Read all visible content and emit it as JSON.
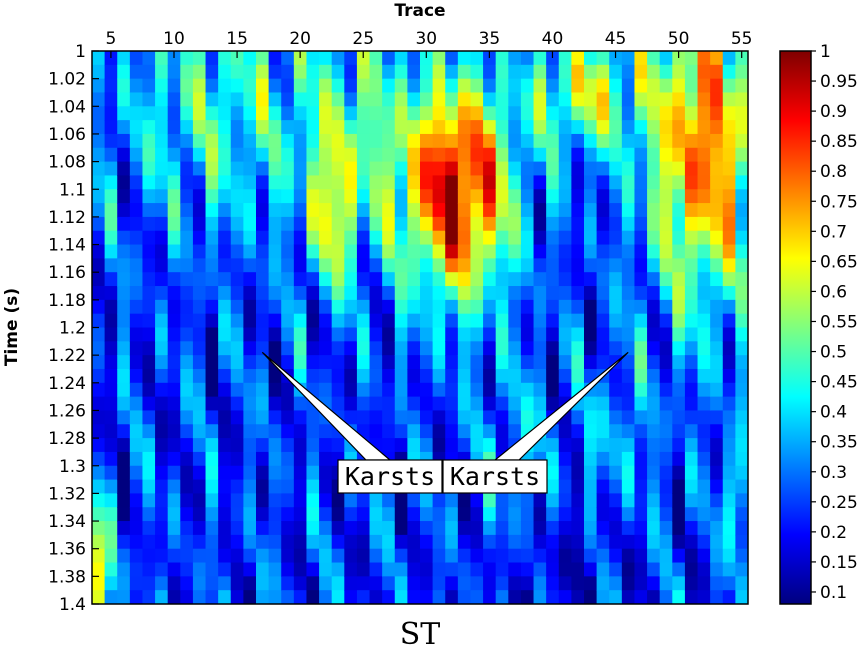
{
  "chart_data": {
    "type": "heatmap",
    "title": "ST",
    "xlabel": "Trace",
    "ylabel": "Time (s)",
    "xlim": [
      3.5,
      55.5
    ],
    "ylim": [
      1.4,
      1.0
    ],
    "x_ticks": [
      5,
      10,
      15,
      20,
      25,
      30,
      35,
      40,
      45,
      50,
      55
    ],
    "y_ticks": [
      1,
      1.02,
      1.04,
      1.06,
      1.08,
      1.1,
      1.12,
      1.14,
      1.16,
      1.18,
      1.2,
      1.22,
      1.24,
      1.26,
      1.28,
      1.3,
      1.32,
      1.34,
      1.36,
      1.38,
      1.4
    ],
    "colormap": "jet",
    "colorbar": {
      "range": [
        0.08,
        1.0
      ],
      "ticks": [
        1,
        0.95,
        0.9,
        0.85,
        0.8,
        0.75,
        0.7,
        0.65,
        0.6,
        0.55,
        0.5,
        0.45,
        0.4,
        0.35,
        0.3,
        0.25,
        0.2,
        0.15,
        0.1
      ]
    },
    "heatmap_summary": [
      {
        "region": "traces 28-37, time 1.00-1.17 s",
        "approx_value": 0.9
      },
      {
        "region": "traces 47-55, time 1.00-1.18 s",
        "approx_value": 0.9
      },
      {
        "region": "traces 21-23, time 1.08-1.16 s",
        "approx_value": 0.7
      },
      {
        "region": "traces 38-45, time 1.02-1.06 s",
        "approx_value": 0.75
      },
      {
        "region": "traces 4-55, time 1.18-1.40 s",
        "approx_value": 0.2
      },
      {
        "region": "trace 4, time 1.34-1.40 s",
        "approx_value": 0.65
      }
    ],
    "annotations": [
      {
        "text": "Karsts",
        "points_to": {
          "trace": 17,
          "time": 1.218
        }
      },
      {
        "text": "Karsts",
        "points_to": {
          "trace": 46,
          "time": 1.218
        }
      }
    ]
  },
  "colors": {
    "jet": [
      "#00007f",
      "#0000ff",
      "#007fff",
      "#00ffff",
      "#7fff7f",
      "#ffff00",
      "#ff7f00",
      "#ff0000",
      "#7f0000"
    ],
    "axis": "#000000",
    "background": "#ffffff"
  }
}
